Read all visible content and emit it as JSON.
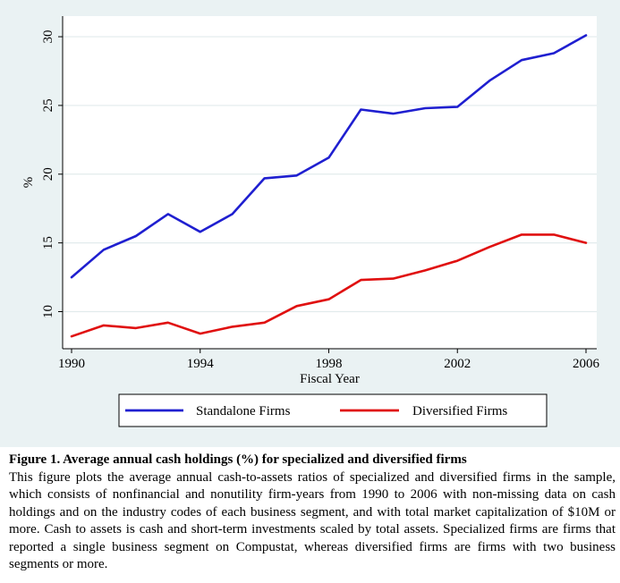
{
  "chart_data": {
    "type": "line",
    "x": [
      1990,
      1991,
      1992,
      1993,
      1994,
      1995,
      1996,
      1997,
      1998,
      1999,
      2000,
      2001,
      2002,
      2003,
      2004,
      2005,
      2006
    ],
    "series": [
      {
        "name": "Standalone Firms",
        "color": "#1f1fd0",
        "values": [
          12.5,
          14.5,
          15.5,
          17.1,
          15.8,
          17.1,
          19.7,
          19.9,
          21.2,
          24.7,
          24.4,
          24.8,
          24.9,
          26.8,
          28.3,
          28.8,
          30.1
        ]
      },
      {
        "name": "Diversified Firms",
        "color": "#e01010",
        "values": [
          8.2,
          9.0,
          8.8,
          9.2,
          8.4,
          8.9,
          9.2,
          10.4,
          10.9,
          12.3,
          12.4,
          13.0,
          13.7,
          14.7,
          15.6,
          15.6,
          15.0
        ]
      }
    ],
    "xlabel": "Fiscal Year",
    "ylabel": "%",
    "xlim": [
      1990,
      2006
    ],
    "ylim": [
      7.3,
      31.5
    ],
    "xticks": [
      1990,
      1994,
      1998,
      2002,
      2006
    ],
    "yticks": [
      10,
      15,
      20,
      25,
      30
    ],
    "grid": "horizontal",
    "legend_position": "bottom"
  },
  "caption": {
    "title": "Figure 1. Average annual cash holdings (%) for specialized and diversified firms",
    "body": "This figure plots the average annual cash-to-assets ratios of specialized and diversified firms in the sample, which consists of nonfinancial and nonutility firm-years from 1990 to 2006 with non-missing data on cash holdings and on the industry codes of each business segment, and with total market capitalization of $10M or more. Cash to assets is cash and short-term investments scaled by total assets. Specialized firms are firms that reported a single business segment on Compustat, whereas diversified firms are firms with two business segments or more."
  }
}
